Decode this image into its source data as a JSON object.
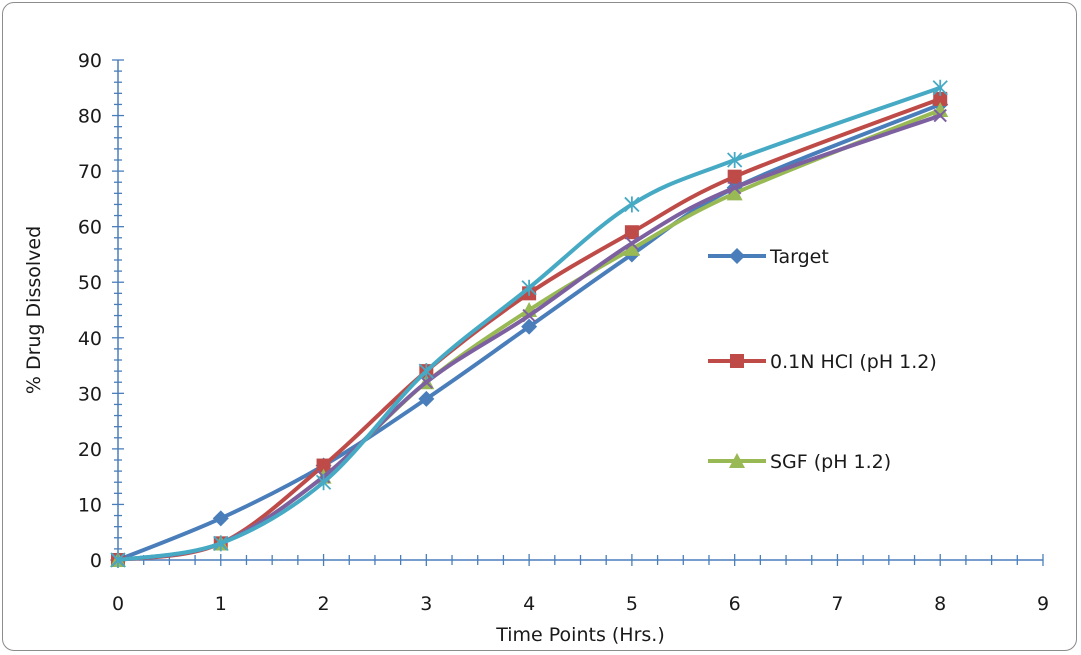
{
  "chart_data": {
    "type": "line",
    "xlabel": "Time Points (Hrs.)",
    "ylabel": "% Drug Dissolved",
    "xlim": [
      0,
      9
    ],
    "ylim": [
      0,
      90
    ],
    "x_ticks": [
      0,
      1,
      2,
      3,
      4,
      5,
      6,
      7,
      8,
      9
    ],
    "y_ticks": [
      0,
      10,
      20,
      30,
      40,
      50,
      60,
      70,
      80,
      90
    ],
    "grid": false,
    "legend_placement": "right",
    "smooth": true,
    "series": [
      {
        "name": "Target",
        "color": "#4a7ebb",
        "marker": "diamond",
        "in_legend": true,
        "x": [
          0,
          1,
          2,
          3,
          4,
          5,
          6,
          8
        ],
        "values": [
          0,
          7.5,
          17,
          29,
          42,
          55,
          67,
          82
        ]
      },
      {
        "name": "0.1N HCl (pH 1.2)",
        "color": "#be4b48",
        "marker": "square",
        "in_legend": true,
        "x": [
          0,
          1,
          2,
          3,
          4,
          5,
          6,
          8
        ],
        "values": [
          0,
          3,
          17,
          34,
          48,
          59,
          69,
          83
        ]
      },
      {
        "name": "SGF (pH 1.2)",
        "color": "#98b954",
        "marker": "triangle",
        "in_legend": true,
        "x": [
          0,
          1,
          2,
          3,
          4,
          5,
          6,
          8
        ],
        "values": [
          0,
          3,
          15,
          32,
          45,
          56,
          66,
          81
        ]
      },
      {
        "name": "",
        "color": "#7d60a0",
        "marker": "x",
        "in_legend": false,
        "x": [
          0,
          1,
          2,
          3,
          4,
          5,
          6,
          8
        ],
        "values": [
          0,
          3,
          15,
          32,
          44,
          57,
          67,
          80
        ]
      },
      {
        "name": "",
        "color": "#46aac5",
        "marker": "star",
        "in_legend": false,
        "x": [
          0,
          1,
          2,
          3,
          4,
          5,
          6,
          8
        ],
        "values": [
          0,
          3,
          14,
          34,
          49,
          64,
          72,
          85
        ]
      }
    ]
  }
}
